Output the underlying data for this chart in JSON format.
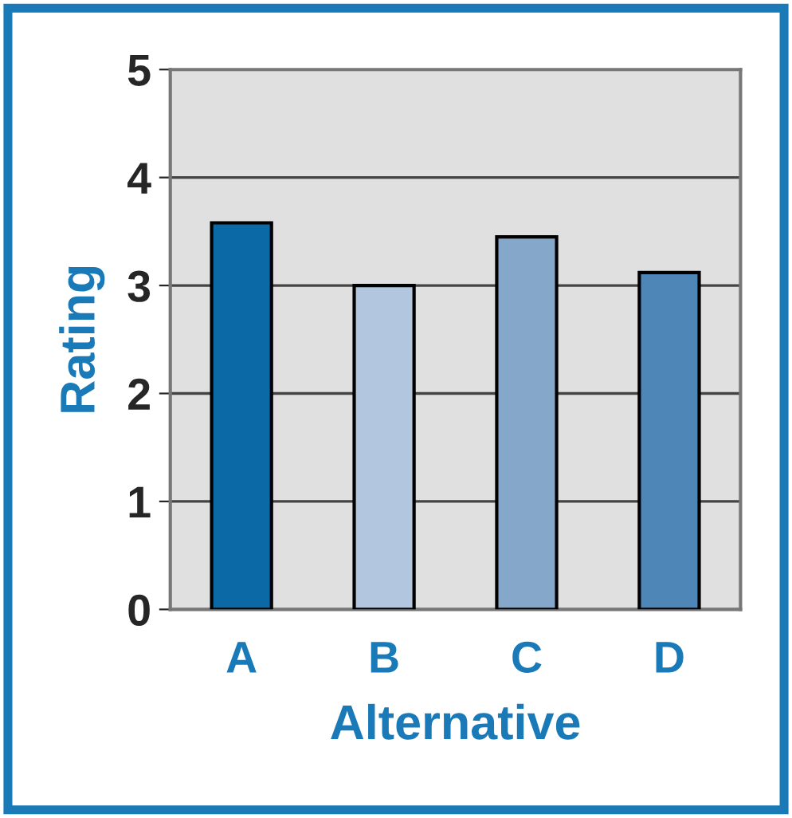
{
  "chart_data": {
    "type": "bar",
    "xlabel": "Alternative",
    "ylabel": "Rating",
    "categories": [
      "A",
      "B",
      "C",
      "D"
    ],
    "values": [
      3.58,
      3.0,
      3.45,
      3.12
    ],
    "colors": [
      "#0b69a6",
      "#b2c7df",
      "#85a7ca",
      "#4e86b8"
    ],
    "ylim": [
      0,
      5
    ],
    "yticks": [
      0,
      1,
      2,
      3,
      4,
      5
    ],
    "grid": "y"
  }
}
